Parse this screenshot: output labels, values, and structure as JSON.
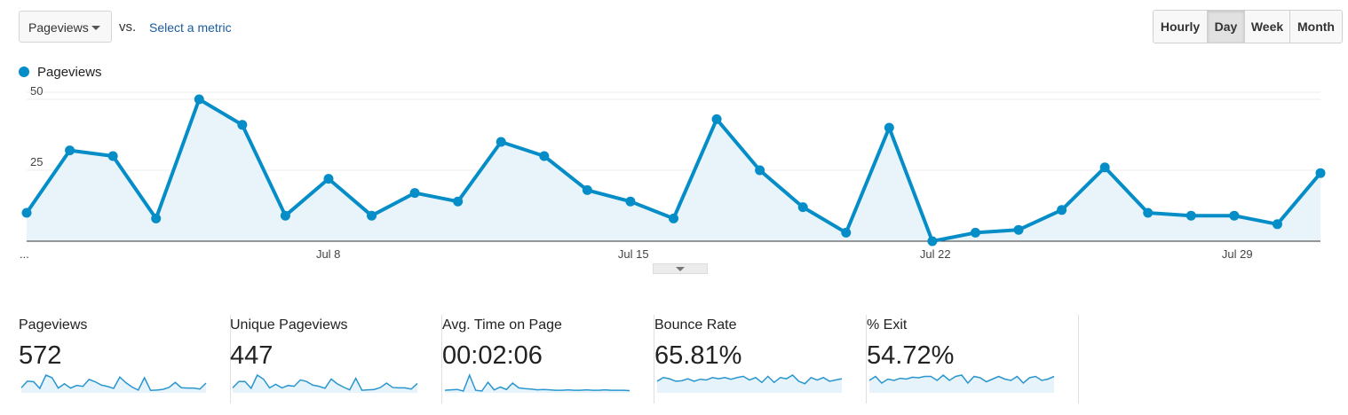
{
  "toolbar": {
    "metric_select_value": "Pageviews",
    "vs_label": "vs.",
    "select_metric_label": "Select a metric",
    "granularity_buttons": [
      "Hourly",
      "Day",
      "Week",
      "Month"
    ],
    "active_granularity": "Day"
  },
  "legend": {
    "label": "Pageviews"
  },
  "colors": {
    "accent": "#058dc7",
    "area_fill": "#e8f4fa",
    "link": "#1a5b9c"
  },
  "icons": {
    "dropdown_caret": "caret-down-icon",
    "collapse": "collapse-caret-icon"
  },
  "chart_data": {
    "type": "area",
    "series": [
      {
        "name": "Pageviews",
        "values": [
          10,
          32,
          30,
          8,
          50,
          41,
          9,
          22,
          9,
          17,
          14,
          35,
          30,
          18,
          14,
          8,
          43,
          25,
          12,
          3,
          40,
          0,
          3,
          4,
          11,
          26,
          10,
          9,
          9,
          6,
          24
        ]
      }
    ],
    "y_ticks": [
      25,
      50
    ],
    "ylim": [
      0,
      50
    ],
    "x_tick_labels": [
      "...",
      "Jul 8",
      "Jul 15",
      "Jul 22",
      "Jul 29"
    ],
    "grid": true,
    "legend_position": "top-left"
  },
  "stats": [
    {
      "label": "Pageviews",
      "value": "572"
    },
    {
      "label": "Unique Pageviews",
      "value": "447"
    },
    {
      "label": "Avg. Time on Page",
      "value": "00:02:06"
    },
    {
      "label": "Bounce Rate",
      "value": "65.81%"
    },
    {
      "label": "% Exit",
      "value": "54.72%"
    }
  ],
  "sparklines": [
    [
      10,
      30,
      28,
      8,
      48,
      40,
      9,
      22,
      9,
      17,
      14,
      35,
      28,
      18,
      14,
      8,
      42,
      25,
      12,
      3,
      40,
      2,
      3,
      5,
      11,
      26,
      10,
      9,
      9,
      6,
      24
    ],
    [
      8,
      24,
      24,
      7,
      40,
      30,
      8,
      17,
      8,
      14,
      12,
      28,
      24,
      15,
      12,
      7,
      30,
      18,
      10,
      3,
      32,
      2,
      3,
      4,
      9,
      20,
      9,
      8,
      8,
      5,
      19
    ],
    [
      2,
      3,
      4,
      0,
      40,
      2,
      0,
      22,
      3,
      10,
      4,
      20,
      8,
      6,
      5,
      3,
      4,
      3,
      2,
      2,
      3,
      2,
      2,
      3,
      2,
      2,
      3,
      2,
      2,
      2,
      1
    ],
    [
      40,
      55,
      50,
      40,
      42,
      50,
      40,
      48,
      45,
      55,
      50,
      55,
      48,
      55,
      60,
      45,
      55,
      35,
      60,
      35,
      55,
      50,
      65,
      40,
      30,
      55,
      45,
      55,
      40,
      45,
      50
    ],
    [
      40,
      55,
      30,
      45,
      40,
      48,
      45,
      52,
      50,
      55,
      55,
      40,
      60,
      40,
      55,
      60,
      30,
      55,
      50,
      35,
      45,
      55,
      45,
      40,
      55,
      30,
      50,
      55,
      40,
      45,
      55
    ]
  ]
}
